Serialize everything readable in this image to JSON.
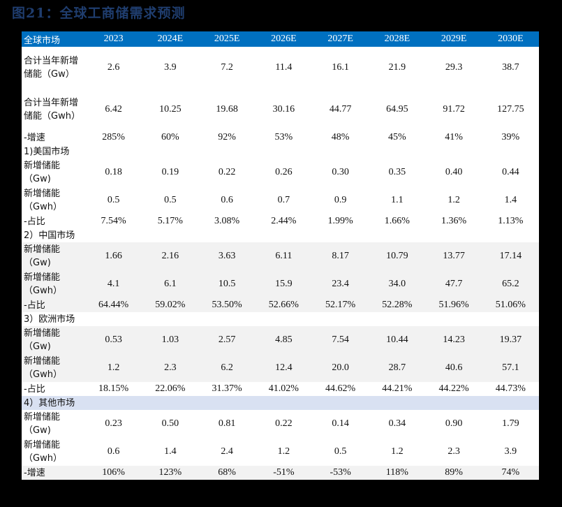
{
  "title": "图21：全球工商储需求预测",
  "table": {
    "headers": [
      "全球市场",
      "2023",
      "2024E",
      "2025E",
      "2026E",
      "2027E",
      "2028E",
      "2029E",
      "2030E"
    ],
    "rows": [
      {
        "label": "合计当年新增储能（Gw）",
        "values": [
          "2.6",
          "3.9",
          "7.2",
          "11.4",
          "16.1",
          "21.9",
          "29.3",
          "38.7"
        ]
      },
      {
        "label": "合计当年新增储能（Gwh）",
        "values": [
          "6.42",
          "10.25",
          "19.68",
          "30.16",
          "44.77",
          "64.95",
          "91.72",
          "127.75"
        ]
      },
      {
        "label": "-增速",
        "values": [
          "285%",
          "60%",
          "92%",
          "53%",
          "48%",
          "45%",
          "41%",
          "39%"
        ]
      },
      {
        "label": "1)美国市场",
        "values": []
      },
      {
        "label": "新增储能（Gw)",
        "values": [
          "0.18",
          "0.19",
          "0.22",
          "0.26",
          "0.30",
          "0.35",
          "0.40",
          "0.44"
        ]
      },
      {
        "label": "新增储能（Gwh）",
        "values": [
          "0.5",
          "0.5",
          "0.6",
          "0.7",
          "0.9",
          "1.1",
          "1.2",
          "1.4"
        ]
      },
      {
        "label": "-占比",
        "values": [
          "7.54%",
          "5.17%",
          "3.08%",
          "2.44%",
          "1.99%",
          "1.66%",
          "1.36%",
          "1.13%"
        ]
      },
      {
        "label": "2）中国市场",
        "values": []
      },
      {
        "label": "新增储能（Gw)",
        "values": [
          "1.66",
          "2.16",
          "3.63",
          "6.11",
          "8.17",
          "10.79",
          "13.77",
          "17.14"
        ]
      },
      {
        "label": "新增储能（Gwh）",
        "values": [
          "4.1",
          "6.1",
          "10.5",
          "15.9",
          "23.4",
          "34.0",
          "47.7",
          "65.2"
        ]
      },
      {
        "label": "-占比",
        "values": [
          "64.44%",
          "59.02%",
          "53.50%",
          "52.66%",
          "52.17%",
          "52.28%",
          "51.96%",
          "51.06%"
        ]
      },
      {
        "label": "3）欧洲市场",
        "values": []
      },
      {
        "label": "新增储能（Gw)",
        "values": [
          "0.53",
          "1.03",
          "2.57",
          "4.85",
          "7.54",
          "10.44",
          "14.23",
          "19.37"
        ]
      },
      {
        "label": "新增储能（Gwh）",
        "values": [
          "1.2",
          "2.3",
          "6.2",
          "12.4",
          "20.0",
          "28.7",
          "40.6",
          "57.1"
        ]
      },
      {
        "label": "-占比",
        "values": [
          "18.15%",
          "22.06%",
          "31.37%",
          "41.02%",
          "44.62%",
          "44.21%",
          "44.22%",
          "44.73%"
        ]
      },
      {
        "label": "4）其他市场",
        "values": []
      },
      {
        "label": "新增储能（Gw)",
        "values": [
          "0.23",
          "0.50",
          "0.81",
          "0.22",
          "0.14",
          "0.34",
          "0.90",
          "1.79"
        ]
      },
      {
        "label": "新增储能（Gwh）",
        "values": [
          "0.6",
          "1.4",
          "2.4",
          "1.2",
          "0.5",
          "1.2",
          "2.3",
          "3.9"
        ]
      },
      {
        "label": "-增速",
        "values": [
          "106%",
          "123%",
          "68%",
          "-51%",
          "-53%",
          "118%",
          "89%",
          "74%"
        ]
      }
    ]
  },
  "colors": {
    "header_bg": "#0070c0",
    "title": "#1f3d6e",
    "row_gray": "#f2f2f2",
    "row_blue": "#d9e1f2"
  }
}
